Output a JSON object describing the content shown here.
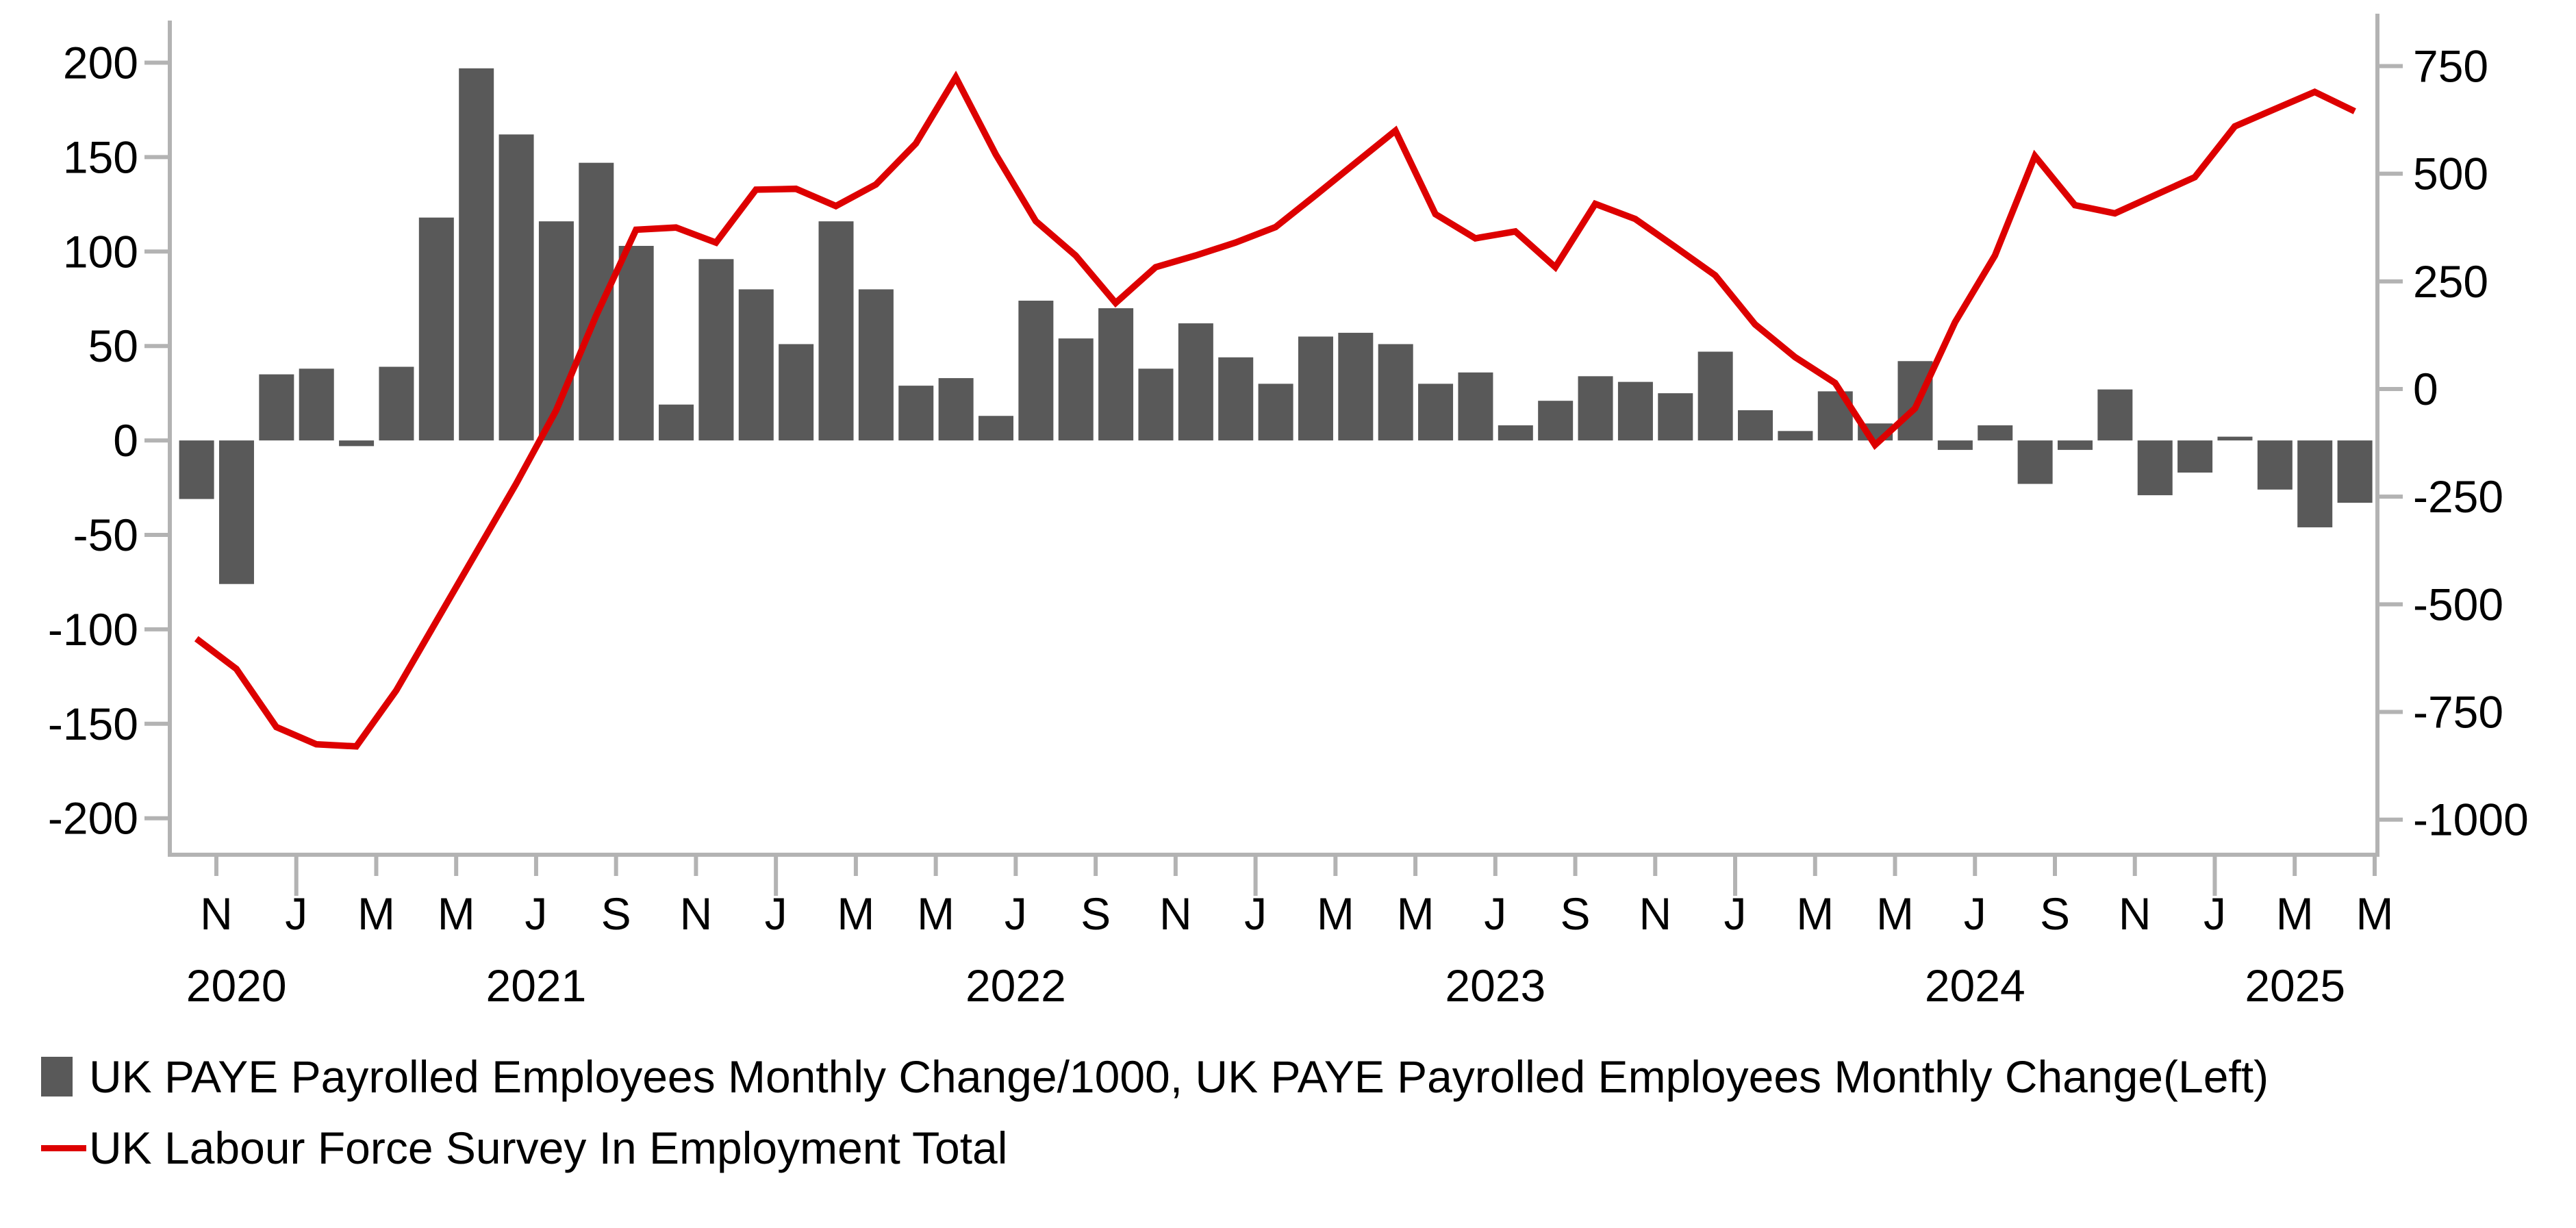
{
  "chart_data": {
    "type": "bar+line",
    "title": "",
    "x_months": [
      "Oct 2020",
      "Nov 2020",
      "Dec 2020",
      "Jan 2021",
      "Feb 2021",
      "Mar 2021",
      "Apr 2021",
      "May 2021",
      "Jun 2021",
      "Jul 2021",
      "Aug 2021",
      "Sep 2021",
      "Oct 2021",
      "Nov 2021",
      "Dec 2021",
      "Jan 2022",
      "Feb 2022",
      "Mar 2022",
      "Apr 2022",
      "May 2022",
      "Jun 2022",
      "Jul 2022",
      "Aug 2022",
      "Sep 2022",
      "Oct 2022",
      "Nov 2022",
      "Dec 2022",
      "Jan 2023",
      "Feb 2023",
      "Mar 2023",
      "Apr 2023",
      "May 2023",
      "Jun 2023",
      "Jul 2023",
      "Aug 2023",
      "Sep 2023",
      "Oct 2023",
      "Nov 2023",
      "Dec 2023",
      "Jan 2024",
      "Feb 2024",
      "Mar 2024",
      "Apr 2024",
      "May 2024",
      "Jun 2024",
      "Jul 2024",
      "Aug 2024",
      "Sep 2024",
      "Oct 2024",
      "Nov 2024",
      "Dec 2024",
      "Jan 2025",
      "Feb 2025",
      "Mar 2025",
      "Apr 2025",
      "May 2025"
    ],
    "x_tick_labels": [
      "N",
      "J",
      "M",
      "M",
      "J",
      "S",
      "N",
      "J",
      "M",
      "M",
      "J",
      "S",
      "N",
      "J",
      "M",
      "M",
      "J",
      "S",
      "N",
      "J",
      "M",
      "M",
      "J",
      "S",
      "N",
      "J",
      "M",
      "M"
    ],
    "year_labels": [
      "2020",
      "2021",
      "2022",
      "2023",
      "2024",
      "2025"
    ],
    "series": [
      {
        "name": "UK PAYE Payrolled Employees Monthly Change/1000, UK PAYE Payrolled Employees Monthly Change(Left)",
        "type": "bar",
        "yaxis": "left",
        "color": "#595959",
        "values": [
          -31,
          -76,
          35,
          38,
          -3,
          39,
          118,
          197,
          162,
          116,
          147,
          103,
          19,
          96,
          80,
          51,
          116,
          80,
          29,
          33,
          13,
          74,
          54,
          70,
          38,
          62,
          44,
          30,
          55,
          57,
          51,
          30,
          36,
          8,
          21,
          34,
          31,
          25,
          47,
          16,
          5,
          26,
          9,
          42,
          -5,
          8,
          -23,
          -5,
          27,
          -29,
          -17,
          2,
          -26,
          -46,
          -33,
          null
        ]
      },
      {
        "name": "UK Labour Force Survey In Employment Total",
        "type": "line",
        "yaxis": "right",
        "color": "#dd0000",
        "values": [
          -580,
          -650,
          -785,
          -825,
          -830,
          -700,
          -540,
          -380,
          -220,
          -50,
          170,
          370,
          375,
          340,
          463,
          465,
          425,
          475,
          570,
          724,
          545,
          390,
          310,
          200,
          283,
          310,
          340,
          376,
          450,
          525,
          600,
          406,
          350,
          366,
          283,
          430,
          395,
          330,
          264,
          150,
          74,
          14,
          -130,
          -45,
          155,
          310,
          541,
          427,
          408,
          450,
          492,
          610,
          650,
          690,
          645,
          null
        ]
      }
    ],
    "left_axis": {
      "ticks": [
        200,
        150,
        100,
        50,
        0,
        -50,
        -100,
        -150,
        -200
      ],
      "range": [
        -220,
        220
      ]
    },
    "right_axis": {
      "ticks": [
        750,
        500,
        250,
        0,
        -250,
        -500,
        -750,
        -1000
      ],
      "range": [
        -1080,
        855
      ]
    },
    "grid": "off",
    "legend_position": "bottom-left",
    "axis_color": "#b3b3b3",
    "text_color": "#000000",
    "background": "#ffffff"
  }
}
